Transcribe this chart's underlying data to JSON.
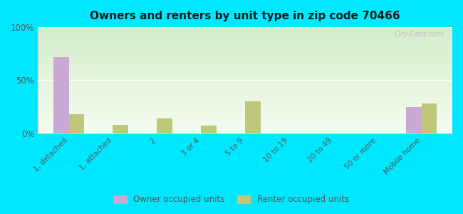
{
  "title": "Owners and renters by unit type in zip code 70466",
  "categories": [
    "1, detached",
    "1, attached",
    "2",
    "3 or 4",
    "5 to 9",
    "10 to 19",
    "20 to 49",
    "50 or more",
    "Mobile home"
  ],
  "owner_values": [
    72,
    0,
    0,
    0,
    0,
    0,
    0,
    0,
    25
  ],
  "renter_values": [
    18,
    8,
    14,
    7,
    30,
    0,
    0,
    0,
    28
  ],
  "owner_color": "#c9a8d4",
  "renter_color": "#bfc87a",
  "outer_bg": "#00e8ff",
  "ylim": [
    0,
    100
  ],
  "ytick_vals": [
    0,
    50,
    100
  ],
  "ylabel_ticks": [
    "0%",
    "50%",
    "100%"
  ],
  "bar_width": 0.35,
  "legend_owner": "Owner occupied units",
  "legend_renter": "Renter occupied units",
  "watermark": "City-Data.com",
  "gradient_top": "#d4edca",
  "gradient_bottom": "#f5fcf0"
}
